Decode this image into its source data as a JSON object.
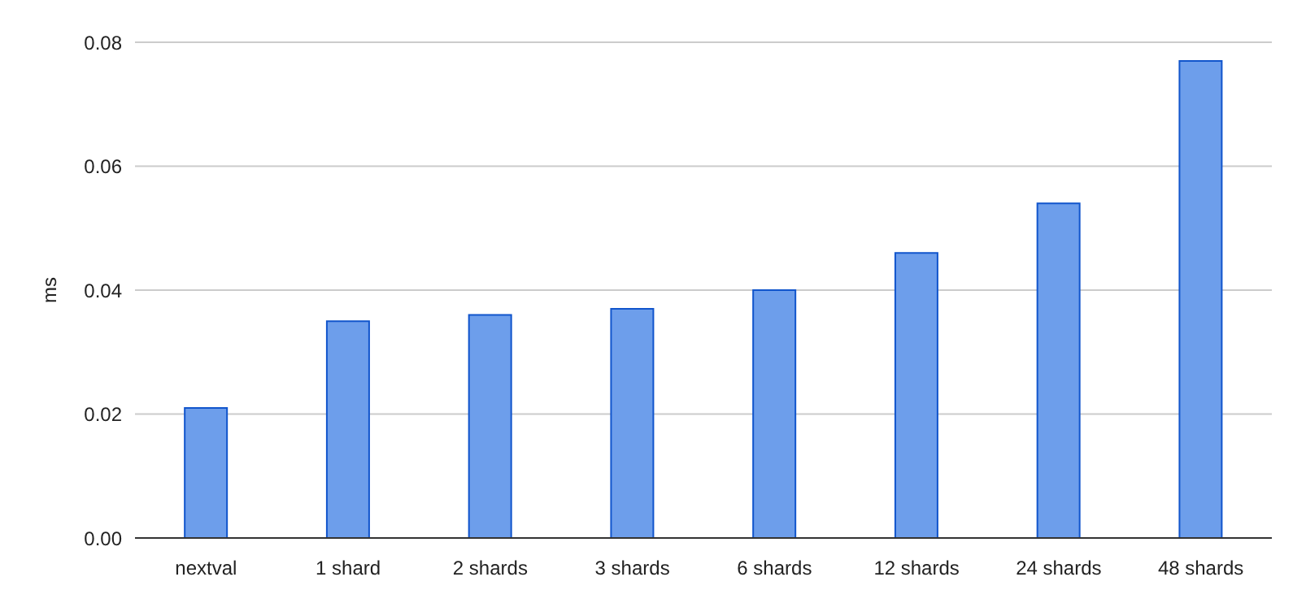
{
  "chart_data": {
    "type": "bar",
    "ylabel": "ms",
    "categories": [
      "nextval",
      "1 shard",
      "2 shards",
      "3 shards",
      "6 shards",
      "12 shards",
      "24 shards",
      "48 shards"
    ],
    "values": [
      0.021,
      0.035,
      0.036,
      0.037,
      0.04,
      0.046,
      0.054,
      0.077
    ],
    "color": "#6d9eeb",
    "ylim": [
      0,
      0.08
    ],
    "yticks": [
      {
        "value": 0,
        "label": "0.00"
      },
      {
        "value": 0.02,
        "label": "0.02"
      },
      {
        "value": 0.04,
        "label": "0.04"
      },
      {
        "value": 0.06,
        "label": "0.06"
      },
      {
        "value": 0.08,
        "label": "0.08"
      }
    ],
    "grid": "y",
    "legend": false
  }
}
